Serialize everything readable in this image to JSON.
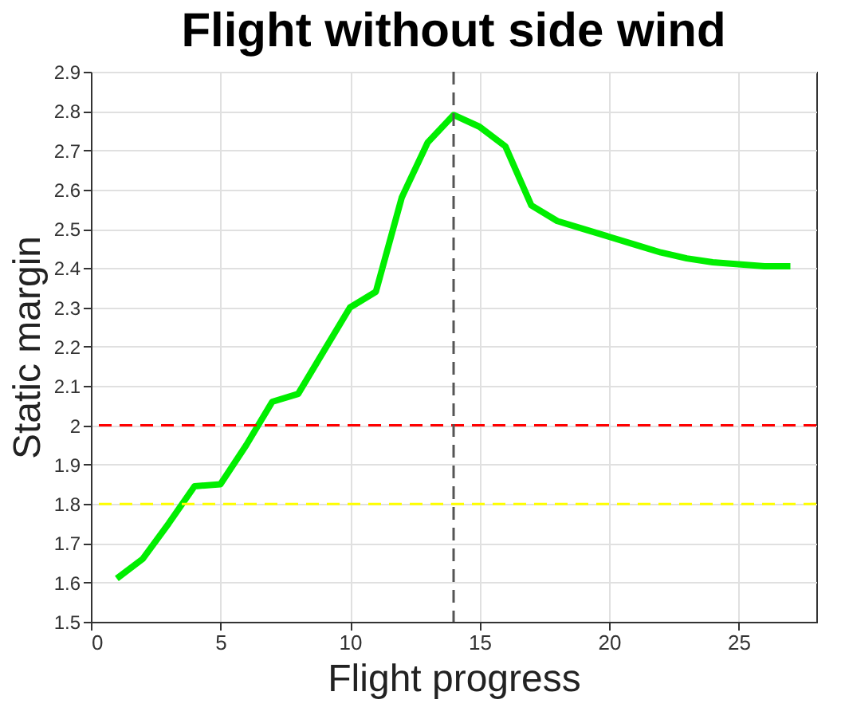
{
  "chart_data": {
    "type": "line",
    "title": "Flight without side wind",
    "xlabel": "Flight progress",
    "ylabel": "Static margin",
    "x": [
      1,
      2,
      3,
      4,
      5,
      6,
      7,
      8,
      9,
      10,
      11,
      12,
      13,
      14,
      15,
      16,
      17,
      18,
      19,
      20,
      21,
      22,
      23,
      24,
      25,
      26,
      27
    ],
    "series": [
      {
        "color": "#00ee00",
        "values": [
          1.61,
          1.66,
          1.75,
          1.845,
          1.85,
          1.95,
          2.06,
          2.08,
          2.19,
          2.3,
          2.34,
          2.58,
          2.72,
          2.79,
          2.76,
          2.71,
          2.56,
          2.52,
          2.5,
          2.48,
          2.46,
          2.44,
          2.425,
          2.415,
          2.41,
          2.405,
          2.405
        ]
      }
    ],
    "xlim": [
      0,
      28
    ],
    "xticks": [
      0,
      5,
      10,
      15,
      20,
      25
    ],
    "ylim": [
      1.5,
      2.9
    ],
    "yticks": [
      1.5,
      1.6,
      1.7,
      1.8,
      1.9,
      2,
      2.1,
      2.2,
      2.3,
      2.4,
      2.5,
      2.6,
      2.7,
      2.8,
      2.9
    ],
    "ref_lines": [
      {
        "axis": "y",
        "value": 2,
        "color": "#ff0000",
        "line_style": "dashed"
      },
      {
        "axis": "y",
        "value": 1.8,
        "color": "#ffff00",
        "line_style": "dashed"
      },
      {
        "axis": "x",
        "value": 14,
        "color": "#555555",
        "line_style": "dashed"
      }
    ],
    "grid": true,
    "line_style": "solid",
    "marker": "none"
  }
}
